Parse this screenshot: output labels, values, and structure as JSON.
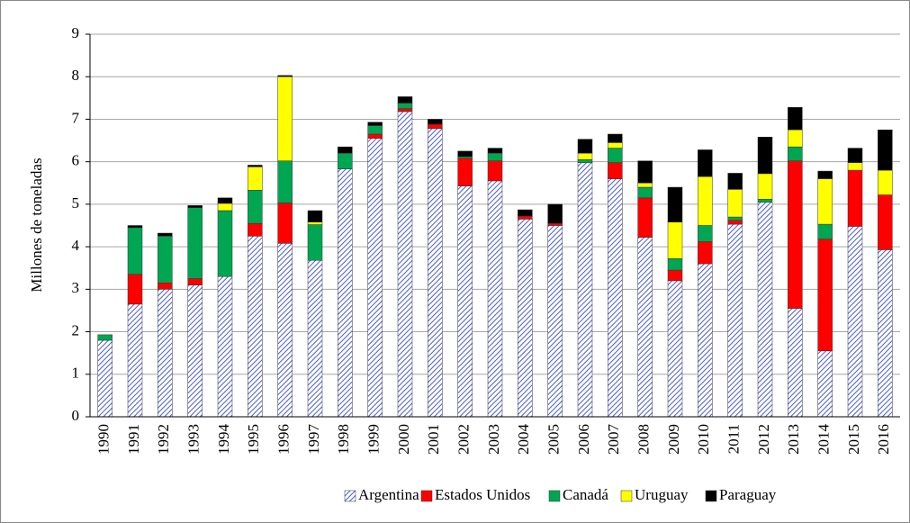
{
  "chart_data": {
    "type": "stacked_bar",
    "y_label": "Millones de toneladas",
    "categories": [
      "1990",
      "1991",
      "1992",
      "1993",
      "1994",
      "1995",
      "1996",
      "1997",
      "1998",
      "1999",
      "2000",
      "2001",
      "2002",
      "2003",
      "2004",
      "2005",
      "2006",
      "2007",
      "2008",
      "2009",
      "2010",
      "2011",
      "2012",
      "2013",
      "2014",
      "2015",
      "2016"
    ],
    "series": [
      {
        "name": "Argentina",
        "color": "#4a5bd6",
        "pattern": "hatch",
        "values": [
          1.8,
          2.65,
          3.0,
          3.1,
          3.3,
          4.25,
          4.08,
          3.68,
          5.83,
          6.55,
          7.18,
          6.78,
          5.43,
          5.55,
          4.65,
          4.5,
          5.98,
          5.6,
          4.22,
          3.2,
          3.6,
          4.53,
          5.05,
          2.55,
          1.55,
          4.48,
          3.93
        ]
      },
      {
        "name": "Estados Unidos",
        "color": "#ff0000",
        "values": [
          0,
          0.7,
          0.15,
          0.15,
          0,
          0.3,
          0.95,
          0,
          0,
          0.1,
          0.07,
          0.1,
          0.65,
          0.47,
          0.07,
          0.05,
          0,
          0.38,
          0.93,
          0.25,
          0.52,
          0.09,
          0,
          3.47,
          2.63,
          1.32,
          1.29
        ]
      },
      {
        "name": "Canadá",
        "color": "#00a651",
        "values": [
          0.13,
          1.1,
          1.1,
          1.67,
          1.55,
          0.78,
          0.99,
          0.84,
          0.37,
          0.2,
          0.13,
          0,
          0.04,
          0.18,
          0,
          0,
          0.07,
          0.34,
          0.25,
          0.27,
          0.38,
          0.08,
          0.07,
          0.33,
          0.35,
          0,
          0
        ]
      },
      {
        "name": "Uruguay",
        "color": "#ffff00",
        "values": [
          0,
          0,
          0,
          0,
          0.17,
          0.55,
          1.98,
          0.06,
          0,
          0,
          0,
          0,
          0,
          0,
          0,
          0,
          0.15,
          0.13,
          0.1,
          0.86,
          1.15,
          0.65,
          0.6,
          0.4,
          1.07,
          0.18,
          0.58
        ]
      },
      {
        "name": "Paraguay",
        "color": "#000000",
        "values": [
          0,
          0.05,
          0.07,
          0.05,
          0.13,
          0.04,
          0.03,
          0.27,
          0.15,
          0.08,
          0.15,
          0.12,
          0.13,
          0.12,
          0.15,
          0.45,
          0.33,
          0.2,
          0.52,
          0.82,
          0.63,
          0.38,
          0.86,
          0.53,
          0.18,
          0.34,
          0.95
        ]
      }
    ],
    "ylim": [
      0,
      9
    ],
    "yticks": [
      0,
      1,
      2,
      3,
      4,
      5,
      6,
      7,
      8,
      9
    ],
    "grid": true,
    "legend": "bottom"
  }
}
